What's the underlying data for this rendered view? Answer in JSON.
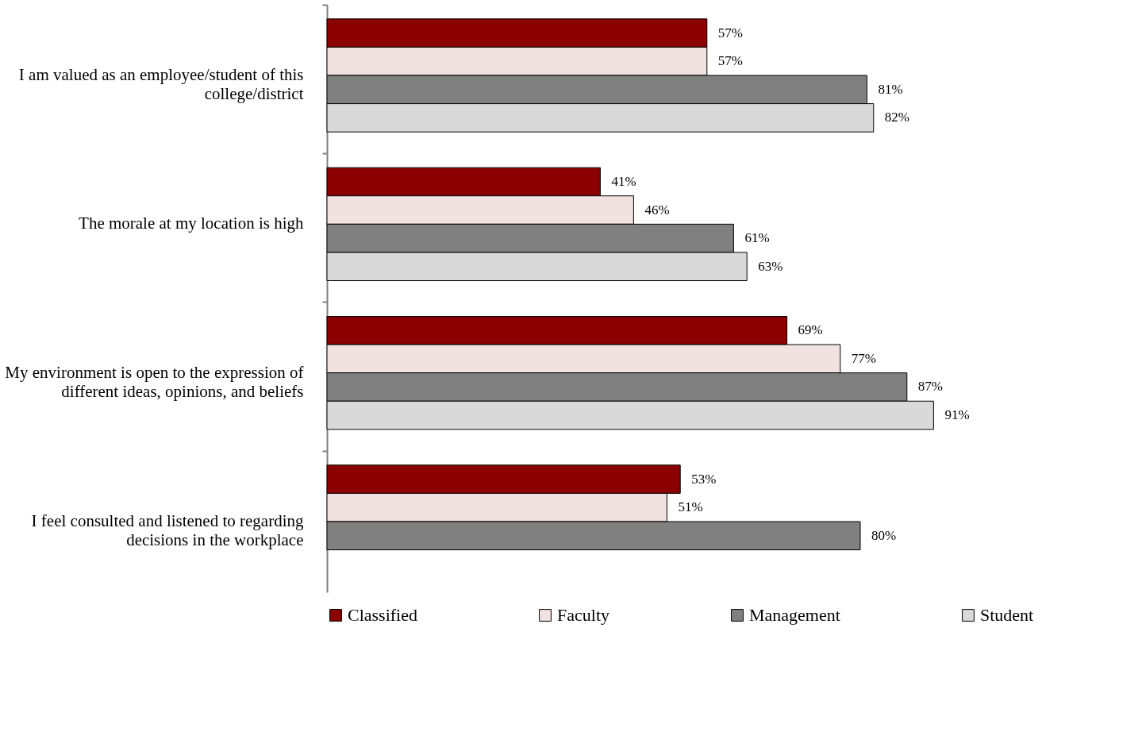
{
  "chart_data": {
    "type": "bar",
    "orientation": "horizontal",
    "categories": [
      "I am valued as an employee/student of this college/district",
      "The morale at my location is high",
      "My environment is open to the expression of different ideas, opinions, and beliefs",
      "I feel consulted and listened to regarding decisions in the workplace"
    ],
    "series": [
      {
        "name": "Classified",
        "color": "#8b0000",
        "values": [
          57,
          41,
          69,
          53
        ],
        "value_labels": [
          "57%",
          "41%",
          "69%",
          "53%"
        ]
      },
      {
        "name": "Faculty",
        "color": "#f2e1e1",
        "values": [
          57,
          46,
          77,
          51
        ],
        "value_labels": [
          "57%",
          "46%",
          "77%",
          "51%"
        ]
      },
      {
        "name": "Management",
        "color": "#808080",
        "values": [
          81,
          61,
          87,
          80
        ],
        "value_labels": [
          "81%",
          "61%",
          "87%",
          "80%"
        ]
      },
      {
        "name": "Student",
        "color": "#d9d9d9",
        "values": [
          82,
          63,
          91,
          null
        ],
        "value_labels": [
          "82%",
          "63%",
          "91%",
          null
        ]
      }
    ],
    "tick_labels": "y",
    "legend": "bottom"
  }
}
